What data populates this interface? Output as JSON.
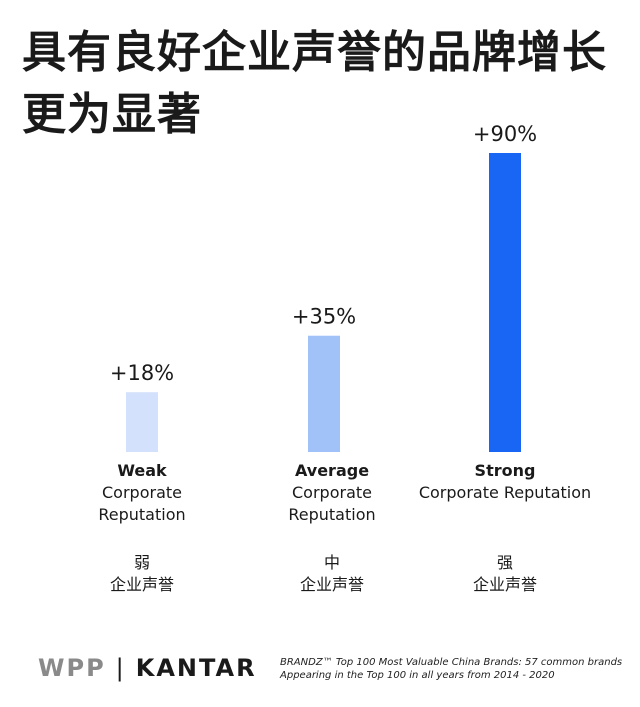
{
  "title": "具有良好企业声誉的品牌增长更为显著",
  "chart_data": {
    "type": "bar",
    "categories": [
      "Weak Corporate Reputation",
      "Average Corporate Reputation",
      "Strong Corporate Reputation"
    ],
    "values": [
      18,
      35,
      90
    ],
    "value_labels": [
      "+18%",
      "+35%",
      "+90%"
    ],
    "ylim": [
      0,
      90
    ],
    "grid": false,
    "colors": [
      "#d3e1fc",
      "#a1c1f9",
      "#1866f3"
    ]
  },
  "categories_text": [
    {
      "strong": "Weak",
      "rest": "Corporate\nReputation",
      "zh": "弱\n企业声誉"
    },
    {
      "strong": "Average",
      "rest": "Corporate\nReputation",
      "zh": "中\n企业声誉"
    },
    {
      "strong": "Strong",
      "rest": "Corporate Reputation",
      "zh": "强\n企业声誉"
    }
  ],
  "footer": {
    "logo_wpp": "WPP",
    "logo_separator": "|",
    "logo_kantar": "KANTAR",
    "source_line1": "BRANDZ™ Top 100 Most Valuable China Brands: 57 common brands",
    "source_line2": "Appearing in the Top 100 in all years from 2014 - 2020"
  }
}
